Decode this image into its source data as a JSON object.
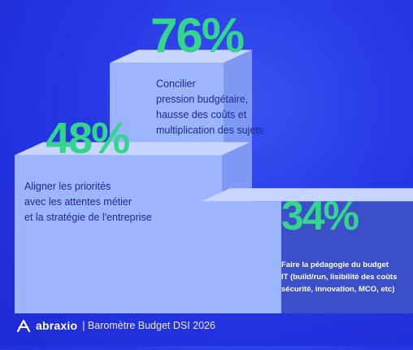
{
  "chart_data": {
    "type": "bar",
    "title": "",
    "categories": [
      "Aligner les priorités\navec les attentes métier\net la stratégie de l'entreprise",
      "Concilier\npression budgétaire,\nhausse des coûts et\nmultiplication des sujets",
      "Faire la pédagogie du budget\nIT (build/run, lisibilité des coûts\nsécurité, innovation, MCO, etc)"
    ],
    "values": [
      48,
      76,
      34
    ],
    "value_labels": [
      "48%",
      "76%",
      "34%"
    ],
    "unit": "%",
    "ylim": [
      0,
      100
    ],
    "grid": false,
    "legend": "none"
  },
  "colors": {
    "background": "#2638e6",
    "percent_text": "#33d68c",
    "bar_front": "#9db4ff",
    "bar_top": "#c8d6ff",
    "bar_side": "#7f98f4",
    "small_bar_front": "#3b4fc9",
    "label_text": "#1d2a8f"
  },
  "footer": {
    "brand": "abraxio",
    "text": "| Baromètre Budget DSI 2026",
    "logo_icon": "abraxio-logo-icon"
  }
}
